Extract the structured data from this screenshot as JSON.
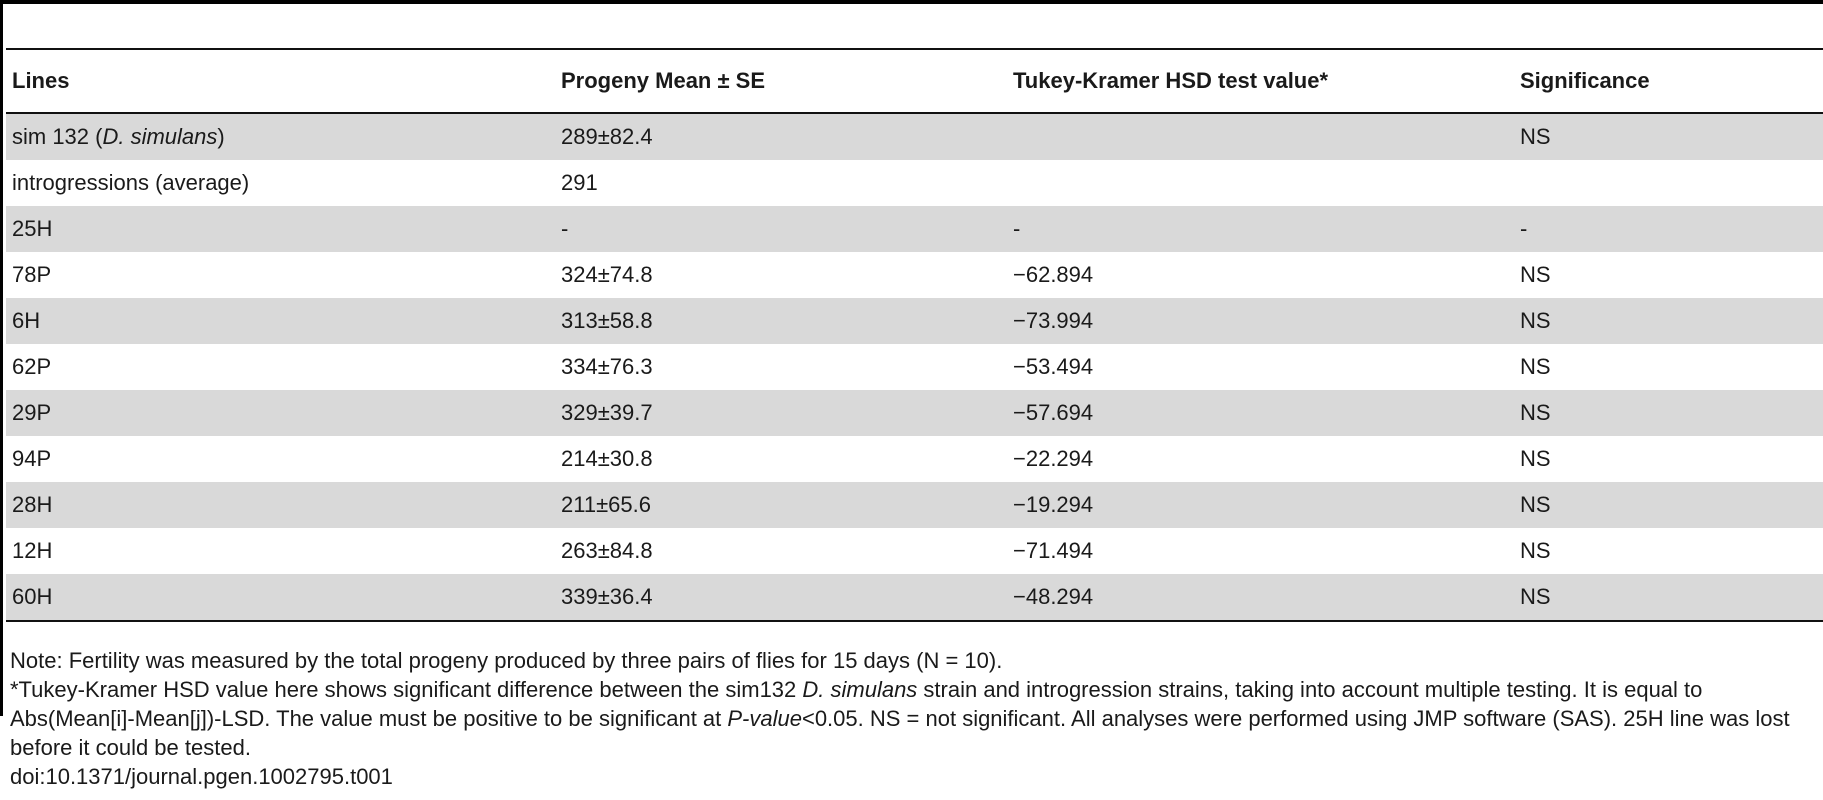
{
  "table": {
    "headers": [
      "Lines",
      "Progeny Mean ± SE",
      "Tukey-Kramer HSD test value*",
      "Significance"
    ],
    "rows": [
      {
        "line_prefix": "sim 132 (",
        "line_italic": "D. simulans",
        "line_suffix": ")",
        "mean": "289±82.4",
        "hsd": "",
        "sig": "NS"
      },
      {
        "line": "introgressions (average)",
        "mean": "291",
        "hsd": "",
        "sig": ""
      },
      {
        "line": "25H",
        "mean": "-",
        "hsd": "-",
        "sig": "-"
      },
      {
        "line": "78P",
        "mean": "324±74.8",
        "hsd": "−62.894",
        "sig": "NS"
      },
      {
        "line": "6H",
        "mean": "313±58.8",
        "hsd": "−73.994",
        "sig": "NS"
      },
      {
        "line": "62P",
        "mean": "334±76.3",
        "hsd": "−53.494",
        "sig": "NS"
      },
      {
        "line": "29P",
        "mean": "329±39.7",
        "hsd": "−57.694",
        "sig": "NS"
      },
      {
        "line": "94P",
        "mean": "214±30.8",
        "hsd": "−22.294",
        "sig": "NS"
      },
      {
        "line": "28H",
        "mean": "211±65.6",
        "hsd": "−19.294",
        "sig": "NS"
      },
      {
        "line": "12H",
        "mean": "263±84.8",
        "hsd": "−71.494",
        "sig": "NS"
      },
      {
        "line": "60H",
        "mean": "339±36.4",
        "hsd": "−48.294",
        "sig": "NS"
      }
    ]
  },
  "notes": {
    "note1": "Note: Fertility was measured by the total progeny produced by three pairs of flies for 15 days (N = 10).",
    "note2_part1": "*Tukey-Kramer HSD value here shows significant difference between the sim132 ",
    "note2_italic1": "D. simulans",
    "note2_part2": " strain and introgression strains, taking into account multiple testing. It is equal to Abs(Mean[i]-Mean[j])-LSD. The value must be positive to be significant at ",
    "note2_italic2": "P-value",
    "note2_part3": "<0.05. NS = not significant. All analyses were performed using JMP software (SAS). 25H line was lost before it could be tested.",
    "doi": "doi:10.1371/journal.pgen.1002795.t001"
  }
}
